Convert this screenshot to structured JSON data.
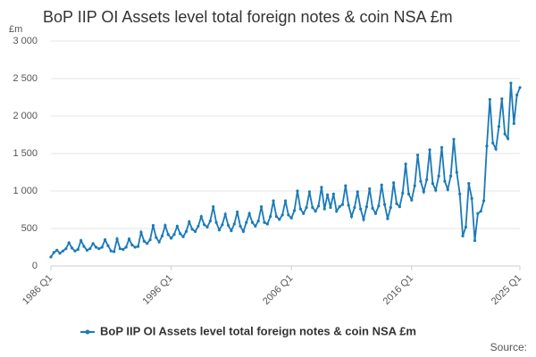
{
  "chart_data": {
    "type": "line",
    "title": "BoP IIP OI Assets level total foreign notes & coin NSA £m",
    "y_unit": "£m",
    "source": "Source:",
    "categories": [
      "1986 Q1",
      null,
      null,
      null,
      null,
      null,
      null,
      null,
      null,
      null,
      null,
      null,
      null,
      null,
      null,
      null,
      null,
      null,
      null,
      null,
      null,
      null,
      null,
      null,
      null,
      null,
      null,
      null,
      null,
      null,
      null,
      null,
      null,
      null,
      null,
      null,
      null,
      null,
      null,
      null,
      "1996 Q1",
      null,
      null,
      null,
      null,
      null,
      null,
      null,
      null,
      null,
      null,
      null,
      null,
      null,
      null,
      null,
      null,
      null,
      null,
      null,
      null,
      null,
      null,
      null,
      null,
      null,
      null,
      null,
      null,
      null,
      null,
      null,
      null,
      null,
      null,
      null,
      null,
      null,
      null,
      null,
      "2006 Q1",
      null,
      null,
      null,
      null,
      null,
      null,
      null,
      null,
      null,
      null,
      null,
      null,
      null,
      null,
      null,
      null,
      null,
      null,
      null,
      null,
      null,
      null,
      null,
      null,
      null,
      null,
      null,
      null,
      null,
      null,
      null,
      null,
      null,
      null,
      null,
      null,
      null,
      null,
      null,
      "2016 Q1",
      null,
      null,
      null,
      null,
      null,
      null,
      null,
      null,
      null,
      null,
      null,
      null,
      null,
      null,
      null,
      null,
      null,
      null,
      null,
      null,
      null,
      null,
      null,
      null,
      null,
      null,
      null,
      null,
      null,
      null,
      null,
      null,
      null,
      null,
      null,
      "2025 Q1"
    ],
    "series": [
      {
        "name": "BoP IIP OI Assets level total foreign notes & coin NSA £m",
        "color": "#1a7ab8",
        "values": [
          120,
          180,
          210,
          170,
          200,
          230,
          310,
          240,
          200,
          220,
          340,
          260,
          210,
          230,
          300,
          250,
          230,
          250,
          350,
          270,
          200,
          190,
          360,
          230,
          220,
          250,
          360,
          280,
          250,
          260,
          450,
          330,
          300,
          350,
          540,
          380,
          320,
          400,
          540,
          420,
          370,
          420,
          530,
          430,
          390,
          460,
          590,
          490,
          460,
          530,
          660,
          550,
          520,
          600,
          790,
          580,
          480,
          550,
          690,
          540,
          470,
          560,
          720,
          530,
          460,
          580,
          700,
          580,
          530,
          600,
          790,
          580,
          560,
          660,
          870,
          660,
          620,
          680,
          870,
          680,
          640,
          740,
          1000,
          760,
          700,
          780,
          990,
          780,
          730,
          800,
          1050,
          760,
          950,
          780,
          960,
          730,
          790,
          820,
          1070,
          810,
          660,
          780,
          990,
          760,
          620,
          790,
          1030,
          770,
          700,
          800,
          1080,
          820,
          630,
          780,
          1110,
          830,
          790,
          970,
          1360,
          960,
          880,
          1070,
          1480,
          1130,
          990,
          1150,
          1550,
          1100,
          1010,
          1200,
          1580,
          1130,
          1020,
          1200,
          1690,
          1250,
          960,
          400,
          520,
          1100,
          900,
          340,
          700,
          730,
          870,
          1600,
          2220,
          1640,
          1560,
          1860,
          2230,
          1760,
          1700,
          2440,
          1900,
          2280,
          2380
        ]
      }
    ],
    "ylim": [
      0,
      3000
    ],
    "yticks": [
      0,
      500,
      {
        "value": 1000,
        "label": "1 000"
      },
      {
        "value": 1500,
        "label": "1 500"
      },
      {
        "value": 2000,
        "label": "2 000"
      },
      {
        "value": 2500,
        "label": "2 500"
      },
      {
        "value": 3000,
        "label": "3 000"
      }
    ],
    "grid": true
  }
}
